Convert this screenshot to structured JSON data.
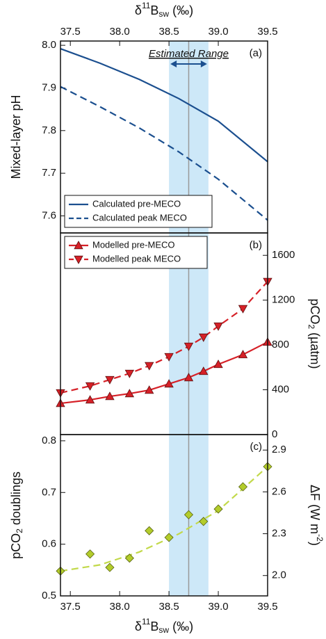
{
  "chart_data": [
    {
      "type": "line",
      "panel_label": "(a)",
      "x_label_parts": [
        {
          "text": "δ"
        },
        {
          "text": "11",
          "style": "sup"
        },
        {
          "text": "B"
        },
        {
          "text": "sw",
          "style": "sub"
        },
        {
          "text": " (‰)"
        }
      ],
      "y_label_parts": [
        {
          "text": "Mixed-layer pH"
        }
      ],
      "x_axis_position": "top",
      "y_axis_side": "left",
      "xlim": [
        37.4,
        39.5
      ],
      "xticks": [
        37.5,
        {
          "value": 38,
          "label": "38.0"
        },
        38.5,
        {
          "value": 39,
          "label": "39.0"
        },
        39.5
      ],
      "ylim": [
        7.56,
        8.01
      ],
      "yticks": [
        7.6,
        7.7,
        7.8,
        7.9,
        {
          "value": 8,
          "label": "8.0"
        }
      ],
      "shaded_range": [
        38.5,
        38.9
      ],
      "range_label": "Estimated Range",
      "range_color": "#cde8f8",
      "reference_x": 38.7,
      "legend": "lower-left",
      "x": [
        37.4,
        37.8,
        38.2,
        38.6,
        39.0,
        39.5
      ],
      "series": [
        {
          "name": "Calculated pre-MECO",
          "color": "#1b4f8f",
          "dash": "solid",
          "values": [
            7.992,
            7.958,
            7.92,
            7.875,
            7.822,
            7.727
          ]
        },
        {
          "name": "Calculated peak MECO",
          "color": "#1b4f8f",
          "dash": "dashed",
          "values": [
            7.903,
            7.856,
            7.806,
            7.75,
            7.686,
            7.59
          ]
        }
      ]
    },
    {
      "type": "line",
      "panel_label": "(b)",
      "y_label_parts": [
        {
          "text": "pCO"
        },
        {
          "text": "2",
          "style": "sub"
        },
        {
          "text": " (µatm)"
        }
      ],
      "y_axis_side": "right",
      "xlim": [
        37.4,
        39.5
      ],
      "ylim": [
        0,
        1800
      ],
      "yticks": [
        0,
        400,
        800,
        1200,
        1600
      ],
      "legend": "upper-left",
      "x": [
        37.4,
        37.7,
        37.9,
        38.1,
        38.3,
        38.5,
        38.7,
        38.85,
        39.0,
        39.25,
        39.5
      ],
      "series": [
        {
          "name": "Modelled pre-MECO",
          "color": "#d62027",
          "marker": "triangle-up",
          "dash": "solid",
          "values": [
            279,
            310,
            341,
            366,
            397,
            453,
            509,
            565,
            627,
            714,
            826
          ]
        },
        {
          "name": "Modelled peak MECO",
          "color": "#d62027",
          "marker": "triangle-down",
          "dash": "dashed",
          "values": [
            372,
            434,
            490,
            546,
            615,
            695,
            788,
            869,
            968,
            1124,
            1366
          ]
        }
      ]
    },
    {
      "type": "scatter",
      "panel_label": "(c)",
      "x_label_parts": [
        {
          "text": "δ"
        },
        {
          "text": "11",
          "style": "sup"
        },
        {
          "text": "B"
        },
        {
          "text": "sw",
          "style": "sub"
        },
        {
          "text": " (‰)"
        }
      ],
      "y_label_parts": [
        {
          "text": "pCO"
        },
        {
          "text": "2",
          "style": "sub"
        },
        {
          "text": " doublings"
        }
      ],
      "y2_label_parts": [
        {
          "text": "ΔF (W m"
        },
        {
          "text": "-2",
          "style": "sup"
        },
        {
          "text": ")"
        }
      ],
      "x_axis_position": "bottom",
      "y_axis_side": "left",
      "xlim": [
        37.4,
        39.5
      ],
      "xticks": [
        37.5,
        {
          "value": 38,
          "label": "38.0"
        },
        38.5,
        {
          "value": 39,
          "label": "39.0"
        },
        39.5
      ],
      "ylim": [
        0.5,
        0.812
      ],
      "yticks": [
        0.5,
        0.6,
        0.7,
        0.8
      ],
      "y2lim": [
        1.854,
        3.011
      ],
      "y2ticks": [
        {
          "value": 2,
          "label": "2.0"
        },
        2.3,
        2.6,
        2.9
      ],
      "x": [
        37.4,
        37.7,
        37.9,
        38.1,
        38.3,
        38.5,
        38.7,
        38.85,
        39.0,
        39.25,
        39.5
      ],
      "series": [
        {
          "color": "#b3cc2b",
          "marker": "diamond",
          "values": [
            0.548,
            0.581,
            0.555,
            0.573,
            0.626,
            0.613,
            0.657,
            0.644,
            0.668,
            0.711,
            0.75
          ]
        }
      ],
      "fit": {
        "color": "#c2d94a",
        "x": [
          37.4,
          37.8,
          38.2,
          38.6,
          39.0,
          39.5
        ],
        "values": [
          0.548,
          0.56,
          0.585,
          0.62,
          0.665,
          0.75
        ]
      }
    }
  ]
}
